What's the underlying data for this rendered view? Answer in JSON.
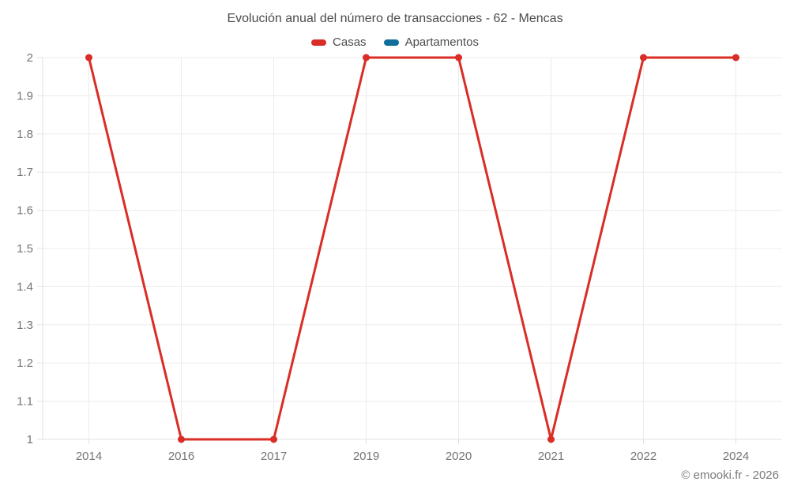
{
  "title": "Evolución anual del número de transacciones - 62 - Mencas",
  "footer": "© emooki.fr - 2026",
  "legend": {
    "items": [
      {
        "label": "Casas",
        "color": "#d92d26"
      },
      {
        "label": "Apartamentos",
        "color": "#106e9b"
      }
    ]
  },
  "chart_data": {
    "type": "line",
    "title": "Evolución anual del número de transacciones - 62 - Mencas",
    "categories": [
      "2014",
      "2016",
      "2017",
      "2019",
      "2020",
      "2021",
      "2022",
      "2024"
    ],
    "series": [
      {
        "name": "Casas",
        "color": "#d92d26",
        "values": [
          2,
          1,
          1,
          2,
          2,
          1,
          2,
          2
        ]
      },
      {
        "name": "Apartamentos",
        "color": "#106e9b",
        "values": []
      }
    ],
    "xlabel": "",
    "ylabel": "",
    "ylim": [
      1,
      2
    ],
    "yticks": [
      1,
      1.1,
      1.2,
      1.3,
      1.4,
      1.5,
      1.6,
      1.7,
      1.8,
      1.9,
      2
    ],
    "grid": true,
    "legend_position": "top",
    "marker": "circle"
  },
  "colors": {
    "grid": "#ececec",
    "axis": "#e2e2e2",
    "tick_text": "#757575",
    "title_text": "#4c4c4c",
    "background": "#ffffff"
  }
}
